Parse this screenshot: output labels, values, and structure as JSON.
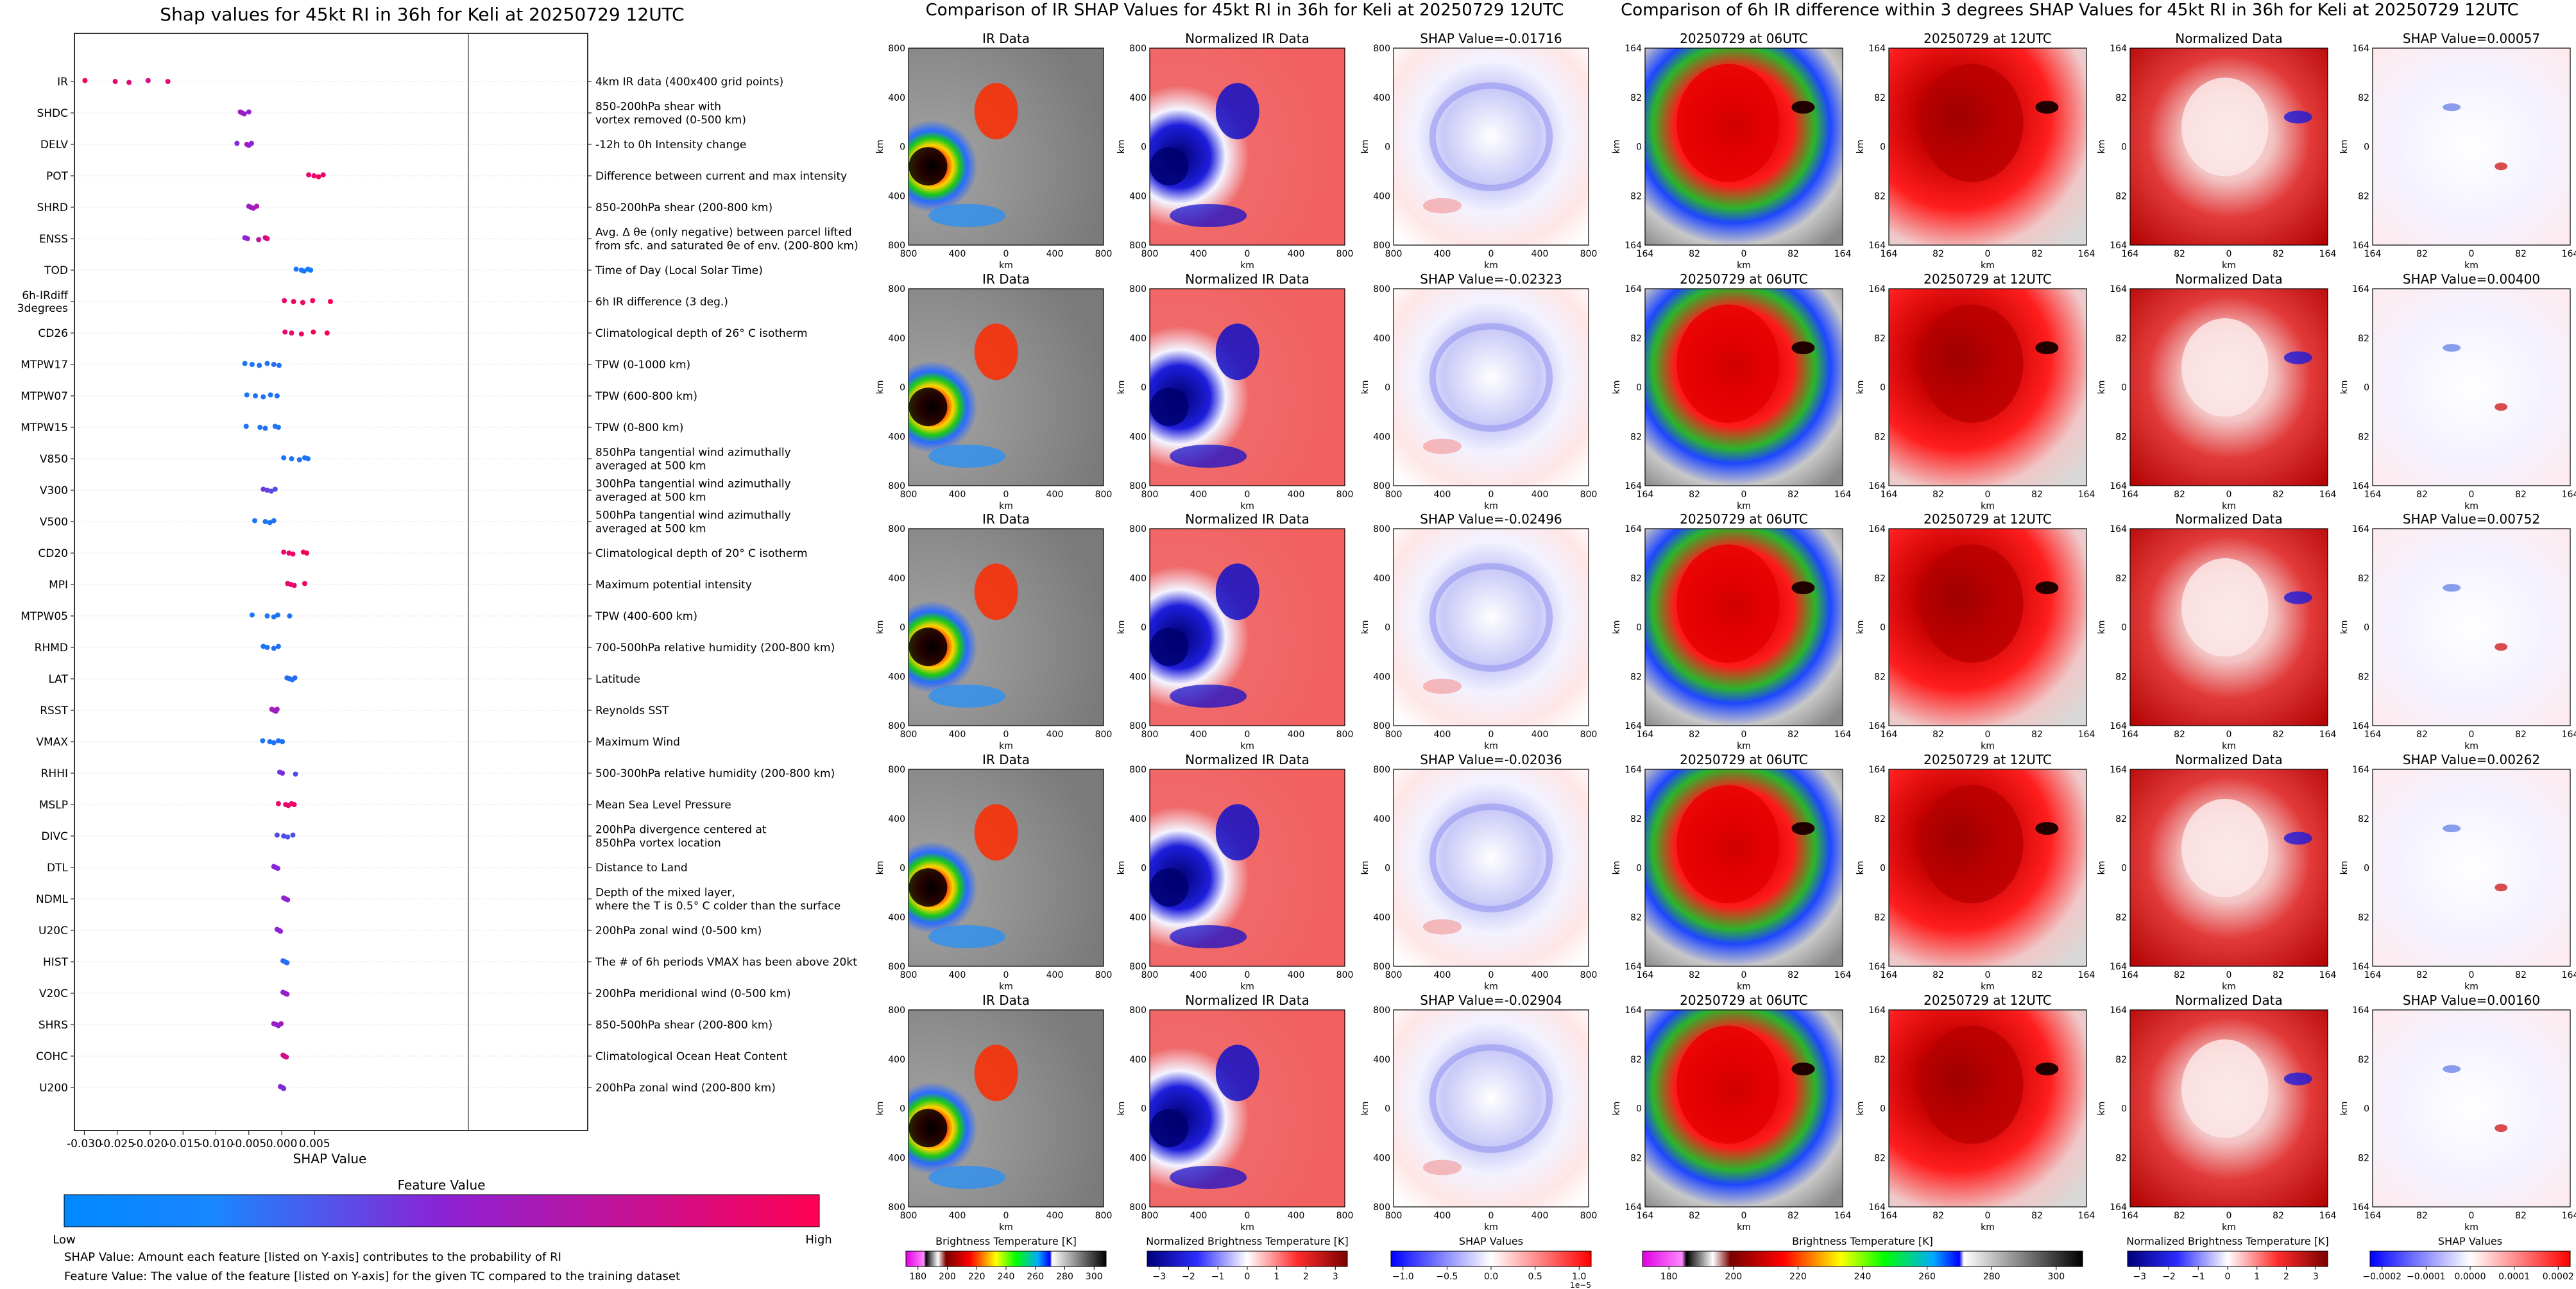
{
  "chart_data": [
    {
      "type": "scatter",
      "subtype": "shap-beeswarm",
      "title": "Shap values for 45kt RI in 36h for Keli at 20250729 12UTC",
      "xlabel": "SHAP Value",
      "xlim": [
        -0.0315,
        0.0465
      ],
      "xticks": [
        "-0.030",
        "-0.025",
        "-0.020",
        "-0.015",
        "-0.010",
        "-0.005",
        "0.000",
        "0.005"
      ],
      "xtick_values": [
        -0.03,
        -0.025,
        -0.02,
        -0.015,
        -0.01,
        -0.005,
        0.0,
        0.005
      ],
      "features": [
        {
          "name": "IR",
          "desc": "4km IR data (400x400 grid points)",
          "points": [
            [
              -0.0299,
              0.95
            ],
            [
              -0.0253,
              0.9
            ],
            [
              -0.0232,
              0.85
            ],
            [
              -0.0203,
              0.8
            ],
            [
              -0.0173,
              0.9
            ]
          ]
        },
        {
          "name": "SHDC",
          "desc": "850-200hPa shear with\nvortex removed (0-500 km)",
          "points": [
            [
              -0.0063,
              0.55
            ],
            [
              -0.006,
              0.6
            ],
            [
              -0.0057,
              0.55
            ],
            [
              -0.005,
              0.5
            ]
          ]
        },
        {
          "name": "DELV",
          "desc": "-12h to 0h Intensity change",
          "points": [
            [
              -0.0068,
              0.45
            ],
            [
              -0.0053,
              0.6
            ],
            [
              -0.005,
              0.55
            ],
            [
              -0.0046,
              0.5
            ]
          ]
        },
        {
          "name": "POT",
          "desc": "Difference between current and max intensity",
          "points": [
            [
              0.0041,
              0.92
            ],
            [
              0.0049,
              0.9
            ],
            [
              0.0056,
              0.95
            ],
            [
              0.0063,
              0.9
            ]
          ]
        },
        {
          "name": "SHRD",
          "desc": "850-200hPa shear (200-800 km)",
          "points": [
            [
              -0.005,
              0.55
            ],
            [
              -0.0047,
              0.6
            ],
            [
              -0.0043,
              0.58
            ],
            [
              -0.0038,
              0.65
            ]
          ]
        },
        {
          "name": "ENSS",
          "desc": "Avg. Δ θe (only negative) between parcel lifted\nfrom sfc. and saturated θe of env. (200-800 km)",
          "points": [
            [
              -0.0056,
              0.5
            ],
            [
              -0.0052,
              0.55
            ],
            [
              -0.0035,
              0.7
            ],
            [
              -0.0025,
              0.8
            ],
            [
              -0.0022,
              0.85
            ]
          ]
        },
        {
          "name": "TOD",
          "desc": "Time of Day (Local Solar Time)",
          "points": [
            [
              0.0022,
              0.1
            ],
            [
              0.003,
              0.1
            ],
            [
              0.0034,
              0.05
            ],
            [
              0.004,
              0.1
            ],
            [
              0.0044,
              0.05
            ]
          ]
        },
        {
          "name": "6h-IRdiff\n3degrees",
          "desc": "6h IR difference (3 deg.)",
          "points": [
            [
              0.0004,
              0.9
            ],
            [
              0.0018,
              0.92
            ],
            [
              0.0032,
              0.9
            ],
            [
              0.0047,
              0.95
            ],
            [
              0.0074,
              0.98
            ]
          ]
        },
        {
          "name": "CD26",
          "desc": "Climatological depth of 26° C isotherm",
          "points": [
            [
              0.0005,
              0.9
            ],
            [
              0.0015,
              0.9
            ],
            [
              0.003,
              0.92
            ],
            [
              0.0048,
              0.95
            ],
            [
              0.0069,
              0.98
            ]
          ]
        },
        {
          "name": "MTPW17",
          "desc": "TPW (0-1000 km)",
          "points": [
            [
              -0.0056,
              0.1
            ],
            [
              -0.0045,
              0.1
            ],
            [
              -0.0034,
              0.12
            ],
            [
              -0.0022,
              0.1
            ],
            [
              -0.0012,
              0.15
            ],
            [
              -0.0004,
              0.12
            ]
          ]
        },
        {
          "name": "MTPW07",
          "desc": "TPW (600-800 km)",
          "points": [
            [
              -0.0053,
              0.1
            ],
            [
              -0.004,
              0.1
            ],
            [
              -0.0028,
              0.12
            ],
            [
              -0.0017,
              0.1
            ],
            [
              -0.0007,
              0.12
            ]
          ]
        },
        {
          "name": "MTPW15",
          "desc": "TPW (0-800 km)",
          "points": [
            [
              -0.0054,
              0.1
            ],
            [
              -0.0033,
              0.1
            ],
            [
              -0.0025,
              0.12
            ],
            [
              -0.001,
              0.1
            ],
            [
              -0.0005,
              0.12
            ]
          ]
        },
        {
          "name": "V850",
          "desc": "850hPa tangential wind azimuthally\naveraged at 500 km",
          "points": [
            [
              0.0003,
              0.1
            ],
            [
              0.0015,
              0.1
            ],
            [
              0.0027,
              0.12
            ],
            [
              0.0035,
              0.1
            ],
            [
              0.004,
              0.12
            ]
          ]
        },
        {
          "name": "V300",
          "desc": "300hPa tangential wind azimuthally\naveraged at 500 km",
          "points": [
            [
              -0.0028,
              0.4
            ],
            [
              -0.0022,
              0.35
            ],
            [
              -0.0016,
              0.3
            ],
            [
              -0.001,
              0.3
            ]
          ]
        },
        {
          "name": "V500",
          "desc": "500hPa tangential wind azimuthally\naveraged at 500 km",
          "points": [
            [
              -0.0041,
              0.1
            ],
            [
              -0.0025,
              0.1
            ],
            [
              -0.0018,
              0.1
            ],
            [
              -0.0012,
              0.12
            ]
          ]
        },
        {
          "name": "CD20",
          "desc": "Climatological depth of 20° C isotherm",
          "points": [
            [
              0.0003,
              0.9
            ],
            [
              0.0011,
              0.9
            ],
            [
              0.0017,
              0.92
            ],
            [
              0.0033,
              0.95
            ],
            [
              0.0038,
              0.95
            ]
          ]
        },
        {
          "name": "MPI",
          "desc": "Maximum potential intensity",
          "points": [
            [
              0.0009,
              0.9
            ],
            [
              0.0014,
              0.9
            ],
            [
              0.0019,
              0.88
            ],
            [
              0.0035,
              0.92
            ]
          ]
        },
        {
          "name": "MTPW05",
          "desc": "TPW (400-600 km)",
          "points": [
            [
              -0.0045,
              0.1
            ],
            [
              -0.0022,
              0.1
            ],
            [
              -0.0012,
              0.12
            ],
            [
              -0.0006,
              0.1
            ],
            [
              0.0012,
              0.12
            ]
          ]
        },
        {
          "name": "RHMD",
          "desc": "700-500hPa relative humidity (200-800 km)",
          "points": [
            [
              -0.0028,
              0.1
            ],
            [
              -0.0022,
              0.1
            ],
            [
              -0.0012,
              0.12
            ],
            [
              -0.0005,
              0.1
            ]
          ]
        },
        {
          "name": "LAT",
          "desc": "Latitude",
          "points": [
            [
              0.0008,
              0.15
            ],
            [
              0.0012,
              0.15
            ],
            [
              0.0016,
              0.1
            ],
            [
              0.002,
              0.15
            ]
          ]
        },
        {
          "name": "RSST",
          "desc": "Reynolds SST",
          "points": [
            [
              -0.0015,
              0.6
            ],
            [
              -0.0012,
              0.6
            ],
            [
              -0.0009,
              0.55
            ],
            [
              -0.0007,
              0.6
            ]
          ]
        },
        {
          "name": "VMAX",
          "desc": "Maximum Wind",
          "points": [
            [
              -0.0029,
              0.1
            ],
            [
              -0.0018,
              0.1
            ],
            [
              -0.0012,
              0.12
            ],
            [
              -0.0005,
              0.1
            ],
            [
              0.0001,
              0.1
            ]
          ]
        },
        {
          "name": "RHHI",
          "desc": "500-300hPa relative humidity (200-800 km)",
          "points": [
            [
              -0.0003,
              0.4
            ],
            [
              0.0001,
              0.45
            ],
            [
              0.0021,
              0.3
            ]
          ]
        },
        {
          "name": "MSLP",
          "desc": "Mean Sea Level Pressure",
          "points": [
            [
              -0.0005,
              0.9
            ],
            [
              0.0006,
              0.92
            ],
            [
              0.001,
              0.88
            ],
            [
              0.0015,
              0.9
            ],
            [
              0.0019,
              0.95
            ]
          ]
        },
        {
          "name": "DIVC",
          "desc": "200hPa divergence centered at\n850hPa vortex location",
          "points": [
            [
              -0.0007,
              0.3
            ],
            [
              0.0003,
              0.3
            ],
            [
              0.0009,
              0.25
            ],
            [
              0.0017,
              0.3
            ]
          ]
        },
        {
          "name": "DTL",
          "desc": "Distance to Land",
          "points": [
            [
              -0.0012,
              0.5
            ],
            [
              -0.0009,
              0.5
            ],
            [
              -0.0006,
              0.45
            ]
          ]
        },
        {
          "name": "NDML",
          "desc": "Depth of the mixed layer,\nwhere the T is 0.5° C colder than the surface",
          "points": [
            [
              0.0003,
              0.55
            ],
            [
              0.0006,
              0.55
            ],
            [
              0.0009,
              0.5
            ]
          ]
        },
        {
          "name": "U20C",
          "desc": "200hPa zonal wind (0-500 km)",
          "points": [
            [
              -0.0007,
              0.5
            ],
            [
              -0.0004,
              0.55
            ],
            [
              -0.0002,
              0.5
            ]
          ]
        },
        {
          "name": "HIST",
          "desc": "The # of 6h periods VMAX has been above 20kt",
          "points": [
            [
              0.0002,
              0.15
            ],
            [
              0.0005,
              0.1
            ],
            [
              0.0008,
              0.15
            ]
          ]
        },
        {
          "name": "V20C",
          "desc": "200hPa meridional wind (0-500 km)",
          "points": [
            [
              0.0002,
              0.55
            ],
            [
              0.0005,
              0.5
            ],
            [
              0.0008,
              0.55
            ]
          ]
        },
        {
          "name": "SHRS",
          "desc": "850-500hPa shear (200-800 km)",
          "points": [
            [
              -0.0012,
              0.6
            ],
            [
              -0.0008,
              0.55
            ],
            [
              -0.0005,
              0.5
            ],
            [
              -0.0001,
              0.6
            ]
          ]
        },
        {
          "name": "COHC",
          "desc": "Climatological Ocean Heat Content",
          "points": [
            [
              0.0002,
              0.8
            ],
            [
              0.0004,
              0.85
            ],
            [
              0.0007,
              0.8
            ]
          ]
        },
        {
          "name": "U200",
          "desc": "200hPa zonal wind (200-800 km)",
          "points": [
            [
              -0.0002,
              0.45
            ],
            [
              0.0001,
              0.5
            ],
            [
              0.0003,
              0.45
            ]
          ]
        }
      ],
      "colorbar": {
        "label": "Feature Value",
        "low": "Low",
        "high": "High",
        "colors": [
          "#0088ff",
          "#8b22d6",
          "#ff0052"
        ]
      },
      "footnotes": [
        "SHAP Value: Amount each feature [listed on Y-axis] contributes to the probability of RI",
        "Feature Value: The value of the feature [listed on Y-axis] for the given TC compared to the training dataset"
      ]
    },
    {
      "type": "heatmap",
      "title": "Comparison of IR SHAP Values for 45kt RI in 36h for Keli at 20250729 12UTC",
      "columns": [
        "IR Data",
        "Normalized IR Data"
      ],
      "shap_titles": [
        "SHAP Value=-0.01716",
        "SHAP Value=-0.02323",
        "SHAP Value=-0.02496",
        "SHAP Value=-0.02036",
        "SHAP Value=-0.02904"
      ],
      "axis_label": "km",
      "xticks": [
        "800",
        "400",
        "0",
        "400",
        "800"
      ],
      "yticks": [
        "800",
        "400",
        "0",
        "400",
        "800"
      ],
      "colorbars": [
        {
          "label": "Brightness Temperature [K]",
          "ticks": [
            "180",
            "200",
            "220",
            "240",
            "260",
            "280",
            "300"
          ]
        },
        {
          "label": "Normalized Brightness Temperature [K]",
          "ticks": [
            "−3",
            "−2",
            "−1",
            "0",
            "1",
            "2",
            "3"
          ]
        },
        {
          "label": "SHAP Values",
          "ticks": [
            "−1.0",
            "−0.5",
            "0.0",
            "0.5",
            "1.0"
          ],
          "offset": "1e−5"
        }
      ]
    },
    {
      "type": "heatmap",
      "title": "Comparison of 6h IR difference within 3 degrees SHAP Values for 45kt RI in 36h for Keli at 20250729 12UTC",
      "columns": [
        "20250729 at 06UTC",
        "20250729 at 12UTC",
        "Normalized Data"
      ],
      "shap_titles": [
        "SHAP Value=0.00057",
        "SHAP Value=0.00400",
        "SHAP Value=0.00752",
        "SHAP Value=0.00262",
        "SHAP Value=0.00160"
      ],
      "axis_label": "km",
      "xticks": [
        "164",
        "82",
        "0",
        "82",
        "164"
      ],
      "yticks": [
        "164",
        "82",
        "0",
        "82",
        "164"
      ],
      "colorbars": [
        {
          "label": "Brightness Temperature [K]",
          "ticks": [
            "180",
            "200",
            "220",
            "240",
            "260",
            "280",
            "300"
          ]
        },
        {
          "label": "Normalized Brightness Temperature [K]",
          "ticks": [
            "−3",
            "−2",
            "−1",
            "0",
            "1",
            "2",
            "3"
          ]
        },
        {
          "label": "SHAP Values",
          "ticks": [
            "−0.0002",
            "−0.0001",
            "0.0000",
            "0.0001",
            "0.0002"
          ]
        }
      ]
    }
  ],
  "colors": {
    "low": "#0088ff",
    "mid": "#8b22d6",
    "high": "#ff0052",
    "ir_dark": "#1c1c1c",
    "ir_gray": "#8a8a8a",
    "ir_light": "#c9c9c9",
    "norm_red": "#ef4a4a",
    "norm_blue": "#1410b8",
    "shap_neutral": "#ffffff"
  }
}
